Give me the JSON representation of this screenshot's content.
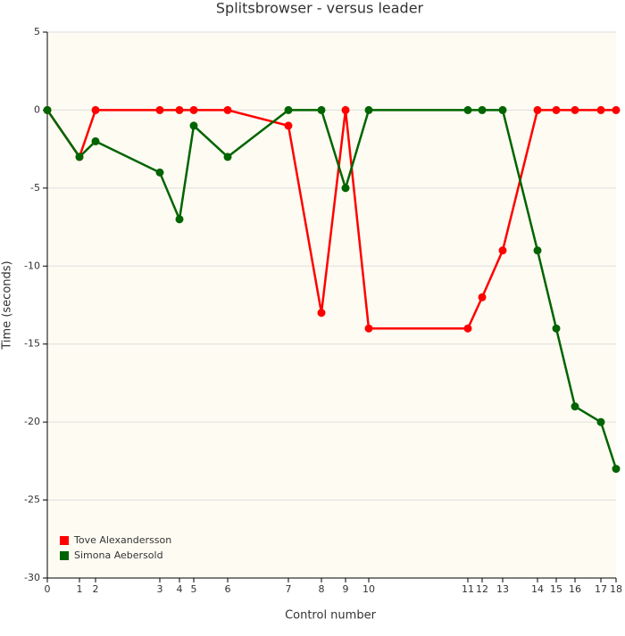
{
  "chart_data": {
    "type": "line",
    "title": "Splitsbrowser - versus leader",
    "x_label": "Control number",
    "y_label": "Time (seconds)",
    "x": [
      0,
      36,
      54,
      126,
      148,
      164,
      202,
      270,
      307,
      334,
      360,
      471,
      487,
      510,
      549,
      570,
      591,
      620,
      637
    ],
    "xlim": [
      0,
      637
    ],
    "xticks": [
      {
        "value": 0,
        "label": "0"
      },
      {
        "value": 36,
        "label": "1"
      },
      {
        "value": 54,
        "label": "2"
      },
      {
        "value": 126,
        "label": "3"
      },
      {
        "value": 148,
        "label": "4"
      },
      {
        "value": 164,
        "label": "5"
      },
      {
        "value": 202,
        "label": "6"
      },
      {
        "value": 270,
        "label": "7"
      },
      {
        "value": 307,
        "label": "8"
      },
      {
        "value": 334,
        "label": "9"
      },
      {
        "value": 360,
        "label": "10"
      },
      {
        "value": 471,
        "label": "11"
      },
      {
        "value": 487,
        "label": "12"
      },
      {
        "value": 510,
        "label": "13"
      },
      {
        "value": 549,
        "label": "14"
      },
      {
        "value": 570,
        "label": "15"
      },
      {
        "value": 591,
        "label": "16"
      },
      {
        "value": 620,
        "label": "17"
      },
      {
        "value": 637,
        "label": "18"
      }
    ],
    "ylim": [
      -30,
      5
    ],
    "yticks": [
      5,
      0,
      -5,
      -10,
      -15,
      -20,
      -25,
      -30
    ],
    "grid": true,
    "legend": "bottom-left",
    "series": [
      {
        "name": "Tove Alexandersson",
        "color": "#ff0000",
        "values": [
          0,
          -3,
          0,
          0,
          0,
          0,
          0,
          -1,
          -13,
          0,
          -14,
          -14,
          -12,
          -9,
          0,
          0,
          0,
          0,
          0
        ]
      },
      {
        "name": "Simona Aebersold",
        "color": "#006400",
        "values": [
          0,
          -3,
          -2,
          -4,
          -7,
          -1,
          -3,
          0,
          0,
          -5,
          0,
          0,
          0,
          0,
          -9,
          -14,
          -19,
          -20,
          -23
        ]
      }
    ]
  }
}
